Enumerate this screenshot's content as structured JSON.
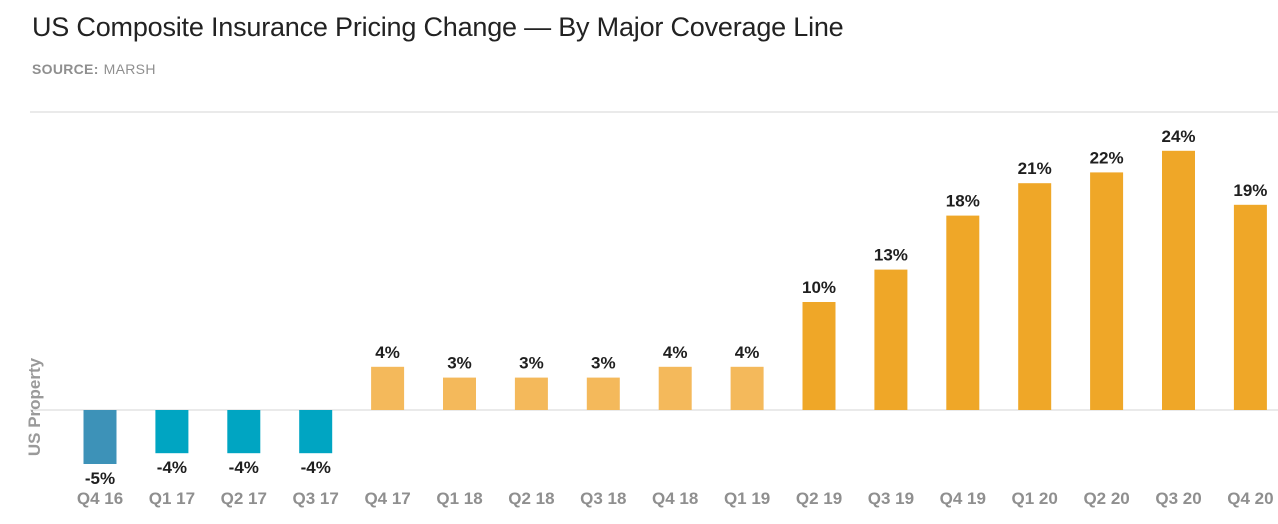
{
  "header": {
    "title": "US Composite Insurance Pricing Change — By Major Coverage Line",
    "source_label": "SOURCE:",
    "source_value": "MARSH"
  },
  "chart_data": {
    "type": "bar",
    "title": "US Composite Insurance Pricing Change — By Major Coverage Line",
    "ylabel": "US Property",
    "xlabel": "",
    "categories": [
      "Q4 16",
      "Q1 17",
      "Q2 17",
      "Q3 17",
      "Q4 17",
      "Q1 18",
      "Q2 18",
      "Q3 18",
      "Q4 18",
      "Q1 19",
      "Q2 19",
      "Q3 19",
      "Q4 19",
      "Q1 20",
      "Q2 20",
      "Q3 20",
      "Q4 20"
    ],
    "values": [
      -5,
      -4,
      -4,
      -4,
      4,
      3,
      3,
      3,
      4,
      4,
      10,
      13,
      18,
      21,
      22,
      24,
      19
    ],
    "data_labels": [
      "-5%",
      "-4%",
      "-4%",
      "-4%",
      "4%",
      "3%",
      "3%",
      "3%",
      "4%",
      "4%",
      "10%",
      "13%",
      "18%",
      "21%",
      "22%",
      "24%",
      "19%"
    ],
    "ylim": [
      -5,
      25
    ],
    "grid": false,
    "colors": {
      "negative_first": "#3d92b8",
      "negative": "#00a5c2",
      "positive_light": "#f4b95b",
      "positive": "#efa728",
      "axis": "#e3e3e3",
      "label": "#1f1f1f",
      "tick": "#8f8f8f"
    }
  }
}
